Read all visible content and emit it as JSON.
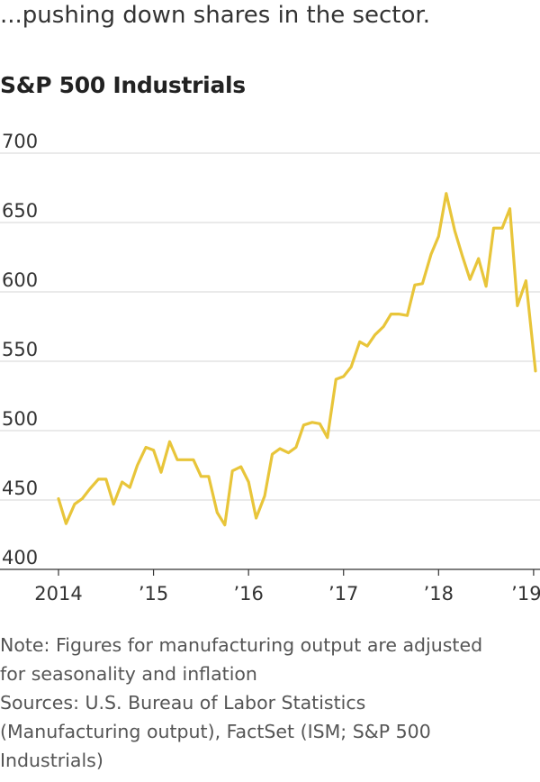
{
  "lead_text": "...pushing down shares in the sector.",
  "chart_data": {
    "type": "line",
    "title": "S&P 500 Industrials",
    "ylim": [
      400,
      700
    ],
    "yticks": [
      400,
      450,
      500,
      550,
      600,
      650,
      700
    ],
    "xlim": [
      2014.0,
      2019.02
    ],
    "xticks": [
      {
        "value": 2014,
        "label": "2014"
      },
      {
        "value": 2015,
        "label": "’15"
      },
      {
        "value": 2016,
        "label": "’16"
      },
      {
        "value": 2017,
        "label": "’17"
      },
      {
        "value": 2018,
        "label": "’18"
      },
      {
        "value": 2019,
        "label": "’19"
      }
    ],
    "grid": true,
    "line_color": "#e8c53a",
    "series": [
      {
        "x": [
          2014.0,
          2014.08,
          2014.17,
          2014.25,
          2014.33,
          2014.42,
          2014.5,
          2014.58,
          2014.67,
          2014.75,
          2014.83,
          2014.92,
          2015.0,
          2015.08,
          2015.17,
          2015.25,
          2015.33,
          2015.42,
          2015.5,
          2015.58,
          2015.67,
          2015.75,
          2015.83,
          2015.92,
          2016.0,
          2016.08,
          2016.17,
          2016.25,
          2016.33,
          2016.42,
          2016.5,
          2016.58,
          2016.67,
          2016.75,
          2016.83,
          2016.92,
          2017.0,
          2017.08,
          2017.17,
          2017.25,
          2017.33,
          2017.42,
          2017.5,
          2017.58,
          2017.67,
          2017.75,
          2017.83,
          2017.92,
          2018.0,
          2018.08,
          2018.17,
          2018.25,
          2018.33,
          2018.42,
          2018.5,
          2018.58,
          2018.67,
          2018.75,
          2018.83,
          2018.92,
          2019.02
        ],
        "y": [
          451,
          433,
          447,
          451,
          458,
          465,
          465,
          447,
          463,
          459,
          475,
          488,
          486,
          470,
          492,
          479,
          479,
          479,
          467,
          467,
          441,
          432,
          471,
          474,
          463,
          437,
          453,
          483,
          487,
          484,
          488,
          504,
          506,
          505,
          495,
          537,
          539,
          546,
          564,
          561,
          569,
          575,
          584,
          584,
          583,
          605,
          606,
          627,
          640,
          671,
          644,
          626,
          609,
          624,
          604,
          646,
          646,
          660,
          590,
          608,
          543
        ]
      }
    ],
    "note": "Note: Figures for manufacturing output are adjusted for seasonality and inflation",
    "sources": "Sources: U.S. Bureau of Labor Statistics (Manufacturing output), FactSet (ISM; S&P 500 Industrials)"
  },
  "footer": {
    "lines": [
      "Note: Figures for manufacturing output are adjusted",
      "for seasonality and inflation",
      "Sources: U.S. Bureau of Labor Statistics",
      "(Manufacturing output), FactSet (ISM; S&P 500",
      "Industrials)"
    ]
  }
}
